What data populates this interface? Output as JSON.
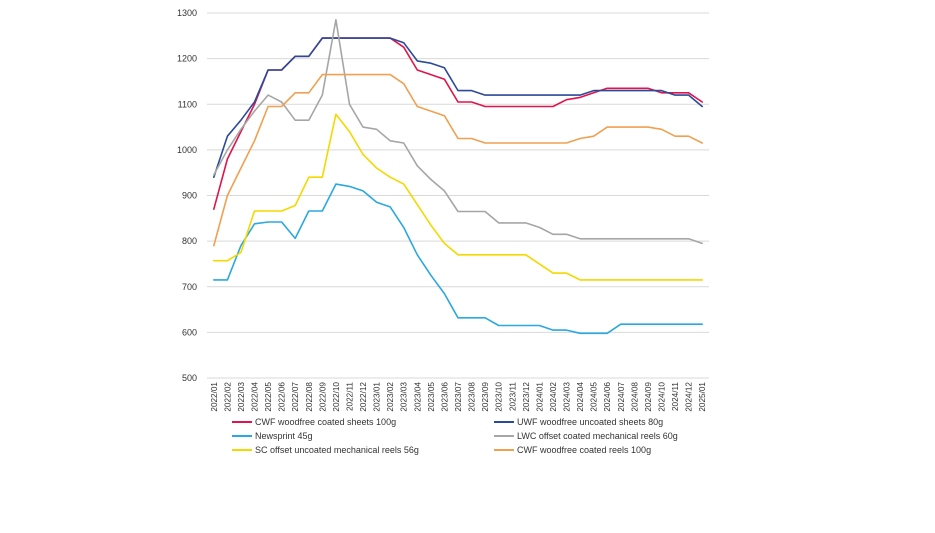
{
  "chart_data": {
    "type": "line",
    "title": "",
    "xlabel": "",
    "ylabel": "",
    "ylim": [
      500,
      1300
    ],
    "yticks": [
      500,
      600,
      700,
      800,
      900,
      1000,
      1100,
      1200,
      1300
    ],
    "grid": true,
    "legend_position": "bottom",
    "categories": [
      "2022/01",
      "2022/02",
      "2022/03",
      "2022/04",
      "2022/05",
      "2022/06",
      "2022/07",
      "2022/08",
      "2022/09",
      "2022/10",
      "2022/11",
      "2022/12",
      "2023/01",
      "2023/02",
      "2023/03",
      "2023/04",
      "2023/05",
      "2023/06",
      "2023/07",
      "2023/08",
      "2023/09",
      "2023/10",
      "2023/11",
      "2023/12",
      "2024/01",
      "2024/02",
      "2024/03",
      "2024/04",
      "2024/05",
      "2024/06",
      "2024/07",
      "2024/08",
      "2024/09",
      "2024/10",
      "2024/11",
      "2024/12",
      "2025/01"
    ],
    "series": [
      {
        "name": "CWF woodfree coated sheets 100g",
        "color": "#e0144c",
        "values": [
          870,
          980,
          1040,
          1100,
          1175,
          1175,
          1205,
          1205,
          1245,
          1245,
          1245,
          1245,
          1245,
          1245,
          1225,
          1175,
          1165,
          1155,
          1105,
          1105,
          1095,
          1095,
          1095,
          1095,
          1095,
          1095,
          1110,
          1115,
          1125,
          1135,
          1135,
          1135,
          1135,
          1125,
          1125,
          1125,
          1105
        ]
      },
      {
        "name": "UWF woodfree uncoated sheets 80g",
        "color": "#2b4a9a",
        "values": [
          940,
          1030,
          1065,
          1105,
          1175,
          1175,
          1205,
          1205,
          1245,
          1245,
          1245,
          1245,
          1245,
          1245,
          1235,
          1195,
          1190,
          1180,
          1130,
          1130,
          1120,
          1120,
          1120,
          1120,
          1120,
          1120,
          1120,
          1120,
          1130,
          1130,
          1130,
          1130,
          1130,
          1130,
          1120,
          1120,
          1095
        ]
      },
      {
        "name": "Newsprint 45g",
        "color": "#2ba8e0",
        "values": [
          715,
          715,
          790,
          838,
          842,
          842,
          806,
          866,
          866,
          925,
          920,
          910,
          885,
          875,
          830,
          770,
          725,
          685,
          632,
          632,
          632,
          615,
          615,
          615,
          615,
          605,
          605,
          598,
          598,
          598,
          618,
          618,
          618,
          618,
          618,
          618,
          618
        ]
      },
      {
        "name": "LWC offset coated mechanical reels 60g",
        "color": "#a6a6a6",
        "values": [
          945,
          1000,
          1045,
          1085,
          1120,
          1105,
          1065,
          1065,
          1120,
          1285,
          1100,
          1050,
          1045,
          1020,
          1015,
          965,
          935,
          910,
          865,
          865,
          865,
          840,
          840,
          840,
          830,
          815,
          815,
          805,
          805,
          805,
          805,
          805,
          805,
          805,
          805,
          805,
          795
        ]
      },
      {
        "name": "SC offset uncoated mechanical reels 56g",
        "color": "#f5d800",
        "values": [
          757,
          757,
          775,
          866,
          866,
          866,
          878,
          940,
          940,
          1078,
          1040,
          990,
          960,
          940,
          925,
          880,
          835,
          795,
          770,
          770,
          770,
          770,
          770,
          770,
          750,
          730,
          730,
          715,
          715,
          715,
          715,
          715,
          715,
          715,
          715,
          715,
          715
        ]
      },
      {
        "name": "CWF woodfree coated reels 100g",
        "color": "#f0a050",
        "values": [
          790,
          900,
          960,
          1020,
          1095,
          1095,
          1125,
          1125,
          1165,
          1165,
          1165,
          1165,
          1165,
          1165,
          1145,
          1095,
          1085,
          1075,
          1025,
          1025,
          1015,
          1015,
          1015,
          1015,
          1015,
          1015,
          1015,
          1025,
          1030,
          1050,
          1050,
          1050,
          1050,
          1045,
          1030,
          1030,
          1015
        ]
      }
    ]
  }
}
